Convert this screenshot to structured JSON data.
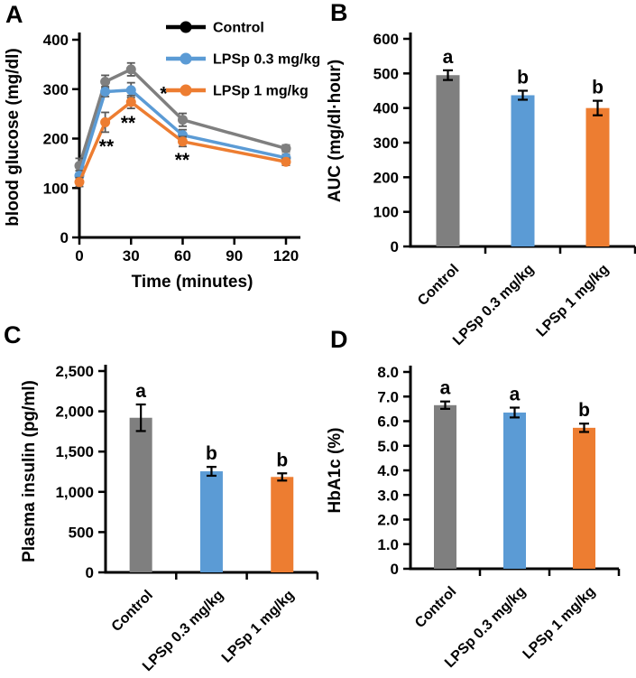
{
  "figure": {
    "panel_labels": [
      "A",
      "B",
      "C",
      "D"
    ]
  },
  "colors": {
    "control_bar": "#7f7f7f",
    "lps03": "#5b9bd5",
    "lps1": "#ed7d31",
    "control_legend": "#000000",
    "axis": "#000000",
    "line_error_bar": "#595959",
    "bar_error_bar": "#000000"
  },
  "chart_data": [
    {
      "id": "A",
      "type": "line",
      "title": "",
      "xlabel": "Time (minutes)",
      "ylabel": "blood glucose (mg/dl)",
      "x": [
        0,
        15,
        30,
        60,
        120
      ],
      "xlim": [
        0,
        120
      ],
      "xticks": [
        0,
        30,
        60,
        90,
        120
      ],
      "ylim": [
        0,
        400
      ],
      "yticks": [
        0,
        100,
        200,
        300,
        400
      ],
      "legend_position": "top-right",
      "series": [
        {
          "name": "Control",
          "color": "#7f7f7f",
          "legend_color": "#000000",
          "values": [
            145,
            315,
            340,
            238,
            180
          ],
          "errors": [
            15,
            13,
            13,
            13,
            7
          ]
        },
        {
          "name": "LPSp 0.3 mg/kg",
          "color": "#5b9bd5",
          "legend_color": "#5b9bd5",
          "values": [
            125,
            295,
            298,
            207,
            161
          ],
          "errors": [
            10,
            10,
            15,
            11,
            7
          ]
        },
        {
          "name": "LPSp 1 mg/kg",
          "color": "#ed7d31",
          "legend_color": "#ed7d31",
          "values": [
            112,
            233,
            274,
            194,
            153
          ],
          "errors": [
            9,
            20,
            13,
            10,
            7
          ]
        }
      ],
      "annotations": [
        {
          "text": "**",
          "x": 15.7,
          "y": 192
        },
        {
          "text": "*",
          "x": 49,
          "y": 299
        },
        {
          "text": "**",
          "x": 28.3,
          "y": 239
        },
        {
          "text": "**",
          "x": 59.7,
          "y": 164
        }
      ]
    },
    {
      "id": "B",
      "type": "bar",
      "ylabel": "AUC (mg/dl·hour)",
      "categories": [
        "Control",
        "LPSp 0.3 mg/kg",
        "LPSp 1 mg/kg"
      ],
      "values": [
        495,
        437,
        400
      ],
      "errors": [
        14,
        13,
        21
      ],
      "letters": [
        "a",
        "b",
        "b"
      ],
      "bar_colors": [
        "#7f7f7f",
        "#5b9bd5",
        "#ed7d31"
      ],
      "ylim": [
        0,
        600
      ],
      "ytick_step": 100,
      "ytick_format": "int"
    },
    {
      "id": "C",
      "type": "bar",
      "ylabel": "Plasma insulin (pg/ml)",
      "categories": [
        "Control",
        "LPSp 0.3 mg/kg",
        "LPSp 1 mg/kg"
      ],
      "values": [
        1920,
        1255,
        1185
      ],
      "errors": [
        165,
        55,
        45
      ],
      "letters": [
        "a",
        "b",
        "b"
      ],
      "bar_colors": [
        "#7f7f7f",
        "#5b9bd5",
        "#ed7d31"
      ],
      "ylim": [
        0,
        2500
      ],
      "ytick_step": 500,
      "ytick_format": "comma"
    },
    {
      "id": "D",
      "type": "bar",
      "ylabel": "HbA1c (%)",
      "categories": [
        "Control",
        "LPSp 0.3 mg/kg",
        "LPSp 1 mg/kg"
      ],
      "values": [
        6.65,
        6.35,
        5.73
      ],
      "errors": [
        0.15,
        0.2,
        0.17
      ],
      "letters": [
        "a",
        "a",
        "b"
      ],
      "bar_colors": [
        "#7f7f7f",
        "#5b9bd5",
        "#ed7d31"
      ],
      "ylim": [
        0,
        8
      ],
      "ytick_step": 1,
      "ytick_format": "dec1"
    }
  ]
}
